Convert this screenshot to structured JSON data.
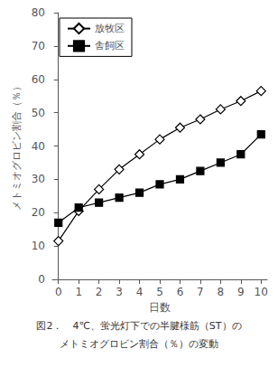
{
  "chart_data": {
    "type": "line",
    "xlabel": "日数",
    "ylabel": "メトミオグロビン割合（％）",
    "annotations": [
      "図2．　4℃、蛍光灯下での半腱様筋（ST）の",
      "メトミオグロビン割合（％）の変動"
    ],
    "x": [
      0,
      1,
      2,
      3,
      4,
      5,
      6,
      7,
      8,
      9,
      10
    ],
    "series": [
      {
        "name": "放牧区",
        "color": "#000000",
        "marker": "open_diamond",
        "values": [
          11.5,
          20.5,
          27.0,
          33.0,
          37.5,
          42.0,
          45.5,
          48.0,
          51.0,
          53.5,
          56.5
        ]
      },
      {
        "name": "舎飼区",
        "color": "#000000",
        "marker": "square",
        "values": [
          17.0,
          21.5,
          23.0,
          24.5,
          26.0,
          28.5,
          30.0,
          32.5,
          35.0,
          37.5,
          43.5
        ]
      }
    ],
    "xlim": [
      -0.3,
      10.3
    ],
    "xticks": [
      0,
      1,
      2,
      3,
      4,
      5,
      6,
      7,
      8,
      9,
      10
    ],
    "ylim": [
      0,
      80
    ],
    "yticks": [
      0,
      10,
      20,
      30,
      40,
      50,
      60,
      70,
      80
    ],
    "legend": "upper left",
    "grid": false
  }
}
